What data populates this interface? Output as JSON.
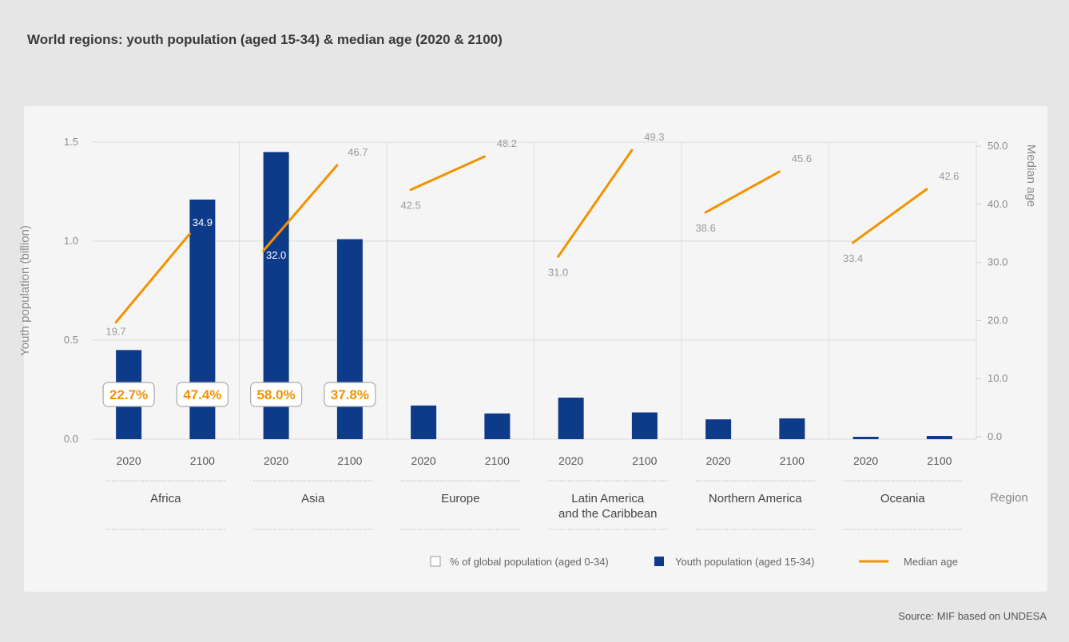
{
  "title": "World regions: youth population (aged 15-34) & median age (2020 & 2100)",
  "source": "Source: MIF based on UNDESA",
  "colors": {
    "bar": "#0e3a8a",
    "line": "#f29200",
    "grid": "#dcdcdc",
    "pct_box": "#aaaaaa"
  },
  "chart_data": {
    "type": "bar",
    "y_left": {
      "label": "Youth population (billion)",
      "ylim": [
        0,
        1.5
      ],
      "ticks": [
        "0.0",
        "0.5",
        "1.0",
        "1.5"
      ]
    },
    "y_right": {
      "label": "Median age",
      "ylim": [
        0,
        50
      ],
      "ticks": [
        "0.0",
        "10.0",
        "20.0",
        "30.0",
        "40.0",
        "50.0"
      ]
    },
    "x_title": "Region",
    "years": [
      "2020",
      "2100"
    ],
    "regions": [
      {
        "name": "Africa",
        "youth": [
          0.45,
          1.21
        ],
        "median_age": [
          19.7,
          34.9
        ],
        "age_labels": [
          "19.7",
          "34.9"
        ],
        "pct": [
          "22.7%",
          "47.4%"
        ]
      },
      {
        "name": "Asia",
        "youth": [
          1.45,
          1.01
        ],
        "median_age": [
          32.0,
          46.7
        ],
        "age_labels": [
          "32.0",
          "46.7"
        ],
        "pct": [
          "58.0%",
          "37.8%"
        ]
      },
      {
        "name": "Europe",
        "youth": [
          0.17,
          0.13
        ],
        "median_age": [
          42.5,
          48.2
        ],
        "age_labels": [
          "42.5",
          "48.2"
        ],
        "pct": [
          "",
          ""
        ]
      },
      {
        "name": "Latin America and the Caribbean",
        "name_lines": [
          "Latin America",
          "and the Caribbean"
        ],
        "youth": [
          0.21,
          0.135
        ],
        "median_age": [
          31.0,
          49.3
        ],
        "age_labels": [
          "31.0",
          "49.3"
        ],
        "pct": [
          "",
          ""
        ]
      },
      {
        "name": "Northern America",
        "youth": [
          0.1,
          0.105
        ],
        "median_age": [
          38.6,
          45.6
        ],
        "age_labels": [
          "38.6",
          "45.6"
        ],
        "pct": [
          "",
          ""
        ]
      },
      {
        "name": "Oceania",
        "youth": [
          0.012,
          0.016
        ],
        "median_age": [
          33.4,
          42.6
        ],
        "age_labels": [
          "33.4",
          "42.6"
        ],
        "pct": [
          "",
          ""
        ]
      }
    ],
    "legend": [
      {
        "label": "% of global population (aged 0-34)",
        "kind": "box"
      },
      {
        "label": "Youth population (aged 15-34)",
        "kind": "bar"
      },
      {
        "label": "Median age",
        "kind": "line"
      }
    ],
    "legend_position": "bottom-right",
    "grid": true
  }
}
